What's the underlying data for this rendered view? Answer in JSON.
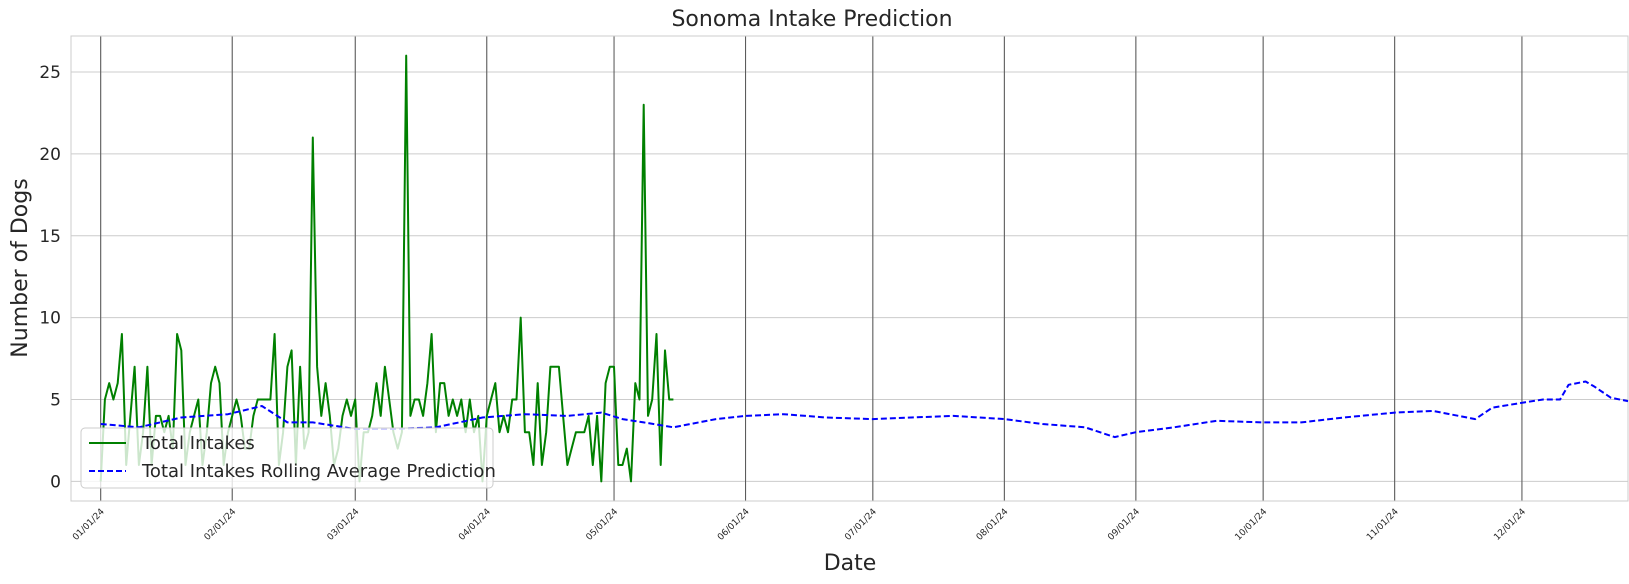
{
  "chart_data": {
    "type": "line",
    "title": "Sonoma Intake Prediction",
    "xlabel": "Date",
    "ylabel": "Number of Dogs",
    "ylim": [
      -1.2,
      27.2
    ],
    "y_ticks": [
      "0",
      "5",
      "10",
      "15",
      "20",
      "25"
    ],
    "y_tick_values": [
      0,
      5,
      10,
      15,
      20,
      25
    ],
    "x_range": [
      "2023-12-25",
      "2024-12-26"
    ],
    "x_ticks": [
      "01/01/24",
      "02/01/24",
      "03/01/24",
      "04/01/24",
      "05/01/24",
      "06/01/24",
      "07/01/24",
      "08/01/24",
      "09/01/24",
      "10/01/24",
      "11/01/24",
      "12/01/24"
    ],
    "x_tick_dates": [
      "2024-01-01",
      "2024-02-01",
      "2024-03-01",
      "2024-04-01",
      "2024-05-01",
      "2024-06-01",
      "2024-07-01",
      "2024-08-01",
      "2024-09-01",
      "2024-10-01",
      "2024-11-01",
      "2024-12-01"
    ],
    "grid": true,
    "vertical_month_lines": true,
    "legend_position": "lower-left",
    "series": [
      {
        "name": "Total Intakes",
        "color": "#008000",
        "style": "solid",
        "start_date": "2024-01-01",
        "step": "daily",
        "values": [
          0,
          5,
          6,
          5,
          6,
          9,
          1,
          4,
          7,
          1,
          3,
          7,
          1,
          4,
          4,
          3,
          4,
          2,
          9,
          8,
          1,
          3,
          4,
          5,
          1,
          3,
          6,
          7,
          6,
          1,
          3,
          4,
          5,
          4,
          2,
          2,
          4,
          5,
          5,
          5,
          5,
          9,
          1,
          3,
          7,
          8,
          1,
          7,
          2,
          3,
          21,
          7,
          4,
          6,
          4,
          1,
          2,
          4,
          5,
          4,
          5,
          0,
          3,
          3,
          4,
          6,
          4,
          7,
          5,
          3,
          2,
          3,
          26,
          4,
          5,
          5,
          4,
          6,
          9,
          3,
          6,
          6,
          4,
          5,
          4,
          5,
          3,
          5,
          3,
          4,
          0,
          4,
          5,
          6,
          3,
          4,
          3,
          5,
          5,
          10,
          3,
          3,
          1,
          6,
          1,
          3,
          7,
          7,
          7,
          4,
          1,
          2,
          3,
          3,
          3,
          4,
          1,
          4,
          0,
          6,
          7,
          7,
          1,
          1,
          2,
          0,
          6,
          5,
          23,
          4,
          5,
          9,
          1,
          8,
          5,
          5
        ]
      },
      {
        "name": "Total Intakes Rolling Average Prediction",
        "color": "#0000ff",
        "style": "dashed",
        "x": [
          "2024-01-01",
          "2024-01-10",
          "2024-01-20",
          "2024-01-31",
          "2024-02-08",
          "2024-02-14",
          "2024-02-20",
          "2024-03-01",
          "2024-03-10",
          "2024-03-20",
          "2024-03-31",
          "2024-04-10",
          "2024-04-20",
          "2024-04-28",
          "2024-05-03",
          "2024-05-08",
          "2024-05-15",
          "2024-05-25",
          "2024-06-01",
          "2024-06-10",
          "2024-06-20",
          "2024-07-01",
          "2024-07-10",
          "2024-07-20",
          "2024-08-01",
          "2024-08-10",
          "2024-08-20",
          "2024-08-27",
          "2024-09-01",
          "2024-09-10",
          "2024-09-20",
          "2024-10-01",
          "2024-10-10",
          "2024-10-20",
          "2024-11-01",
          "2024-11-10",
          "2024-11-20",
          "2024-11-24",
          "2024-12-01",
          "2024-12-06",
          "2024-12-10",
          "2024-12-12",
          "2024-12-16",
          "2024-12-18",
          "2024-12-22",
          "2024-12-26"
        ],
        "values": [
          3.5,
          3.3,
          3.9,
          4.1,
          4.6,
          3.6,
          3.6,
          3.2,
          3.2,
          3.3,
          3.9,
          4.1,
          4.0,
          4.2,
          3.8,
          3.6,
          3.3,
          3.8,
          4.0,
          4.1,
          3.9,
          3.8,
          3.9,
          4.0,
          3.8,
          3.5,
          3.3,
          2.7,
          3.0,
          3.3,
          3.7,
          3.6,
          3.6,
          3.9,
          4.2,
          4.3,
          3.8,
          4.5,
          4.8,
          5.0,
          5.0,
          5.9,
          6.1,
          5.8,
          5.1,
          4.9
        ]
      }
    ]
  }
}
